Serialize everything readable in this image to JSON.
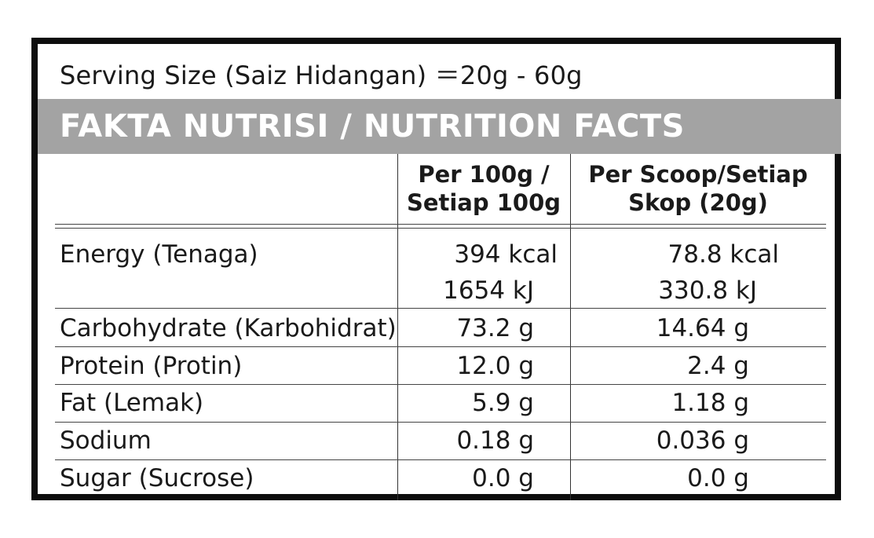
{
  "serving": {
    "label": "Serving Size (Saiz Hidangan)",
    "value": "＝20g - 60g"
  },
  "title": "FAKTA NUTRISI / NUTRITION FACTS",
  "columns": {
    "per100_line1": "Per 100g /",
    "per100_line2": "Setiap 100g",
    "perscoop_line1": "Per Scoop/Setiap",
    "perscoop_line2": "Skop (20g)"
  },
  "rows": [
    {
      "name": "Energy (Tenaga)",
      "per100": "394 kcal",
      "per100_b": "1654 kJ",
      "perscoop": "78.8 kcal",
      "perscoop_b": "330.8 kJ"
    },
    {
      "name": "Carbohydrate (Karbohidrat)",
      "per100": "73.2 g",
      "perscoop": "14.64 g"
    },
    {
      "name": "Protein (Protin)",
      "per100": "12.0 g",
      "perscoop": "2.4 g"
    },
    {
      "name": "Fat (Lemak)",
      "per100": "5.9 g",
      "perscoop": "1.18 g"
    },
    {
      "name": "Sodium",
      "per100": "0.18 g",
      "perscoop": "0.036 g"
    },
    {
      "name": "Sugar (Sucrose)",
      "per100": "0.0 g",
      "perscoop": "0.0 g"
    }
  ],
  "colors": {
    "frame": "#0d0d0d",
    "banner": "#a3a3a3",
    "banner_text": "#ffffff"
  }
}
